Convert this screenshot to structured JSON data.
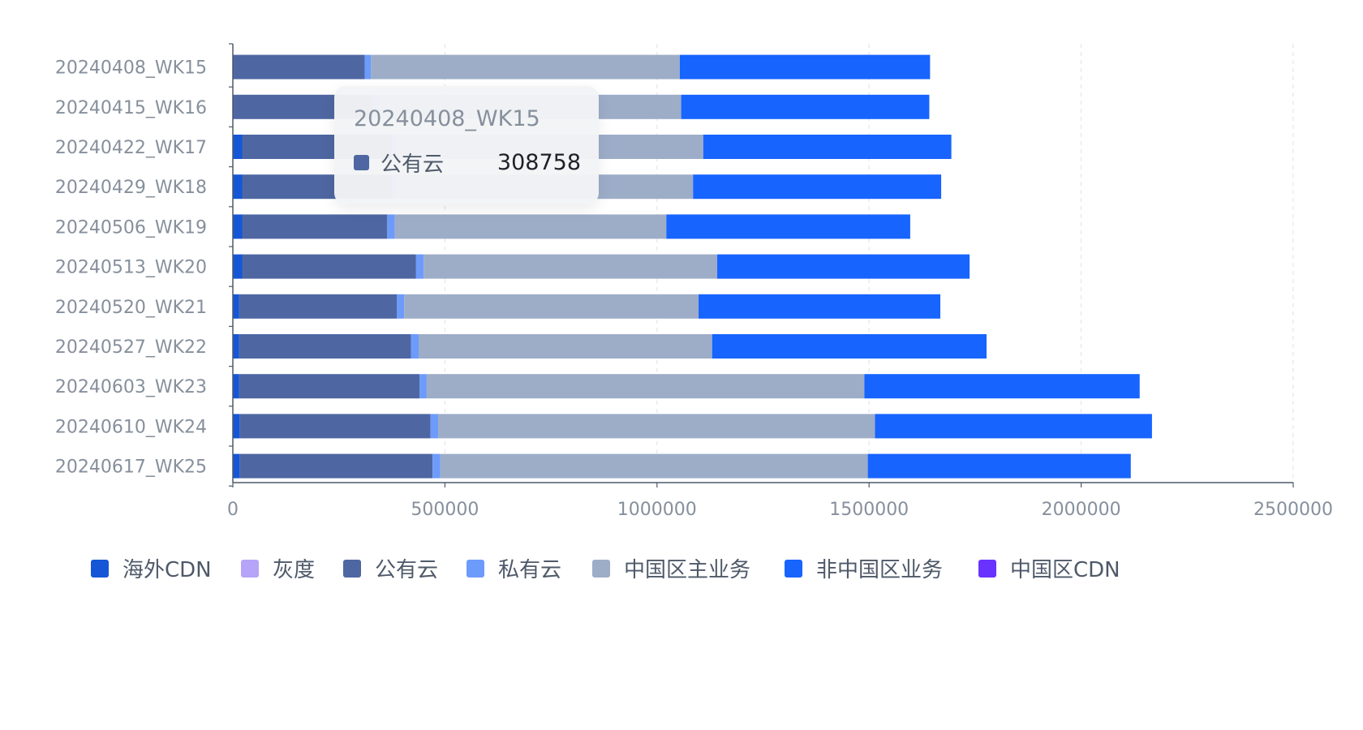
{
  "chart_data": {
    "type": "bar",
    "orientation": "horizontal",
    "stacked": true,
    "categories": [
      "20240408_WK15",
      "20240415_WK16",
      "20240422_WK17",
      "20240429_WK18",
      "20240506_WK19",
      "20240513_WK20",
      "20240520_WK21",
      "20240527_WK22",
      "20240603_WK23",
      "20240610_WK24",
      "20240617_WK25"
    ],
    "series": [
      {
        "name": "海外CDN",
        "color": "#1456d6",
        "values": [
          2000,
          2000,
          22000,
          22000,
          22000,
          22000,
          15000,
          15000,
          15000,
          16000,
          16000
        ]
      },
      {
        "name": "灰度",
        "color": "#b5a4f7",
        "values": [
          0,
          0,
          0,
          0,
          0,
          0,
          0,
          0,
          0,
          0,
          0
        ]
      },
      {
        "name": "公有云",
        "color": "#4e67a2",
        "values": [
          308758,
          328000,
          352000,
          352000,
          342000,
          410000,
          372000,
          405000,
          425000,
          450000,
          455000
        ]
      },
      {
        "name": "私有云",
        "color": "#6d9bfb",
        "values": [
          15000,
          15000,
          15000,
          15000,
          18000,
          18000,
          17000,
          18000,
          17000,
          18000,
          18000
        ]
      },
      {
        "name": "中国区主业务",
        "color": "#9dadc8",
        "values": [
          728000,
          712000,
          720000,
          696000,
          640000,
          692000,
          694000,
          692000,
          1032000,
          1030000,
          1008000
        ]
      },
      {
        "name": "非中国区业务",
        "color": "#1764ff",
        "values": [
          590000,
          585000,
          585000,
          585000,
          575000,
          595000,
          570000,
          647000,
          649000,
          653000,
          620000
        ]
      },
      {
        "name": "中国区CDN",
        "color": "#6832ff",
        "values": [
          0,
          0,
          0,
          0,
          0,
          0,
          0,
          0,
          0,
          0,
          0
        ]
      }
    ],
    "xlim": [
      0,
      2500000
    ],
    "xticks": [
      "0",
      "500000",
      "1000000",
      "1500000",
      "2000000",
      "2500000"
    ],
    "xlabel": "",
    "ylabel": "",
    "grid": "vertical-dashed",
    "legend_position": "bottom-left"
  },
  "tooltip": {
    "title": "20240408_WK15",
    "series_name": "公有云",
    "value": "308758",
    "swatch_color": "#4e67a2"
  }
}
